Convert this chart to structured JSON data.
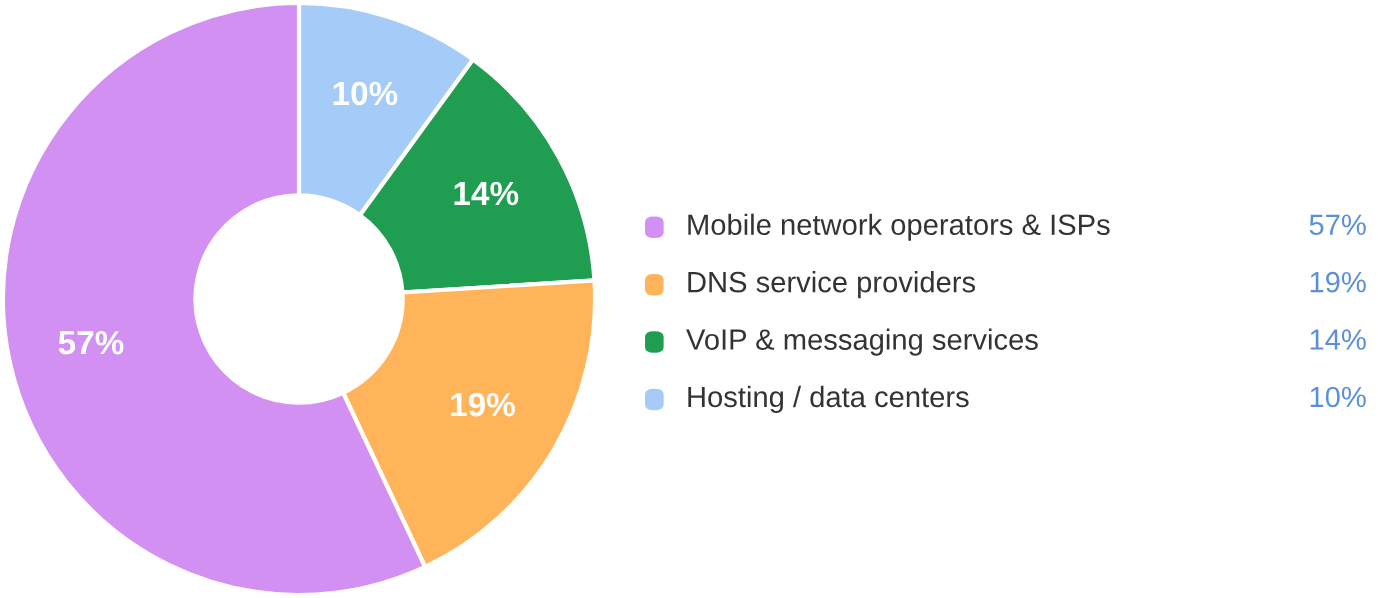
{
  "chart_data": {
    "type": "donut",
    "categories": [
      "Mobile network operators & ISPs",
      "DNS service providers",
      "VoIP & messaging services",
      "Hosting / data centers"
    ],
    "values": [
      57,
      19,
      14,
      10
    ],
    "value_labels": [
      "57%",
      "19%",
      "14%",
      "10%"
    ],
    "colors": [
      "#d291f2",
      "#ffb459",
      "#1f9e51",
      "#a5cbf8"
    ],
    "legend": "right"
  }
}
